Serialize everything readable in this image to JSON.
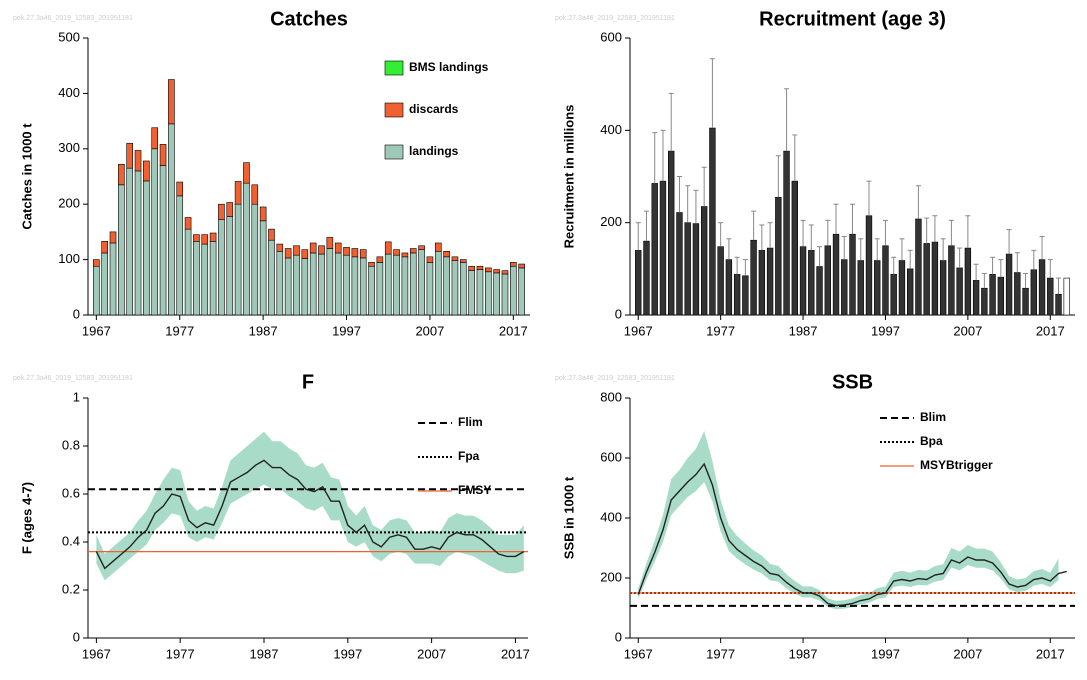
{
  "chart_data": [
    {
      "type": "stacked",
      "title": "Catches",
      "ylabel": "Catches in 1000 t",
      "watermark": "pok.27.3a46_2019_12583_201951181",
      "x": [
        1967,
        1968,
        1969,
        1970,
        1971,
        1972,
        1973,
        1974,
        1975,
        1976,
        1977,
        1978,
        1979,
        1980,
        1981,
        1982,
        1983,
        1984,
        1985,
        1986,
        1987,
        1988,
        1989,
        1990,
        1991,
        1992,
        1993,
        1994,
        1995,
        1996,
        1997,
        1998,
        1999,
        2000,
        2001,
        2002,
        2003,
        2004,
        2005,
        2006,
        2007,
        2008,
        2009,
        2010,
        2011,
        2012,
        2013,
        2014,
        2015,
        2016,
        2017,
        2018
      ],
      "series": [
        {
          "name": "landings",
          "color": "#a0c8b8",
          "values": [
            88,
            112,
            130,
            235,
            265,
            260,
            242,
            300,
            270,
            345,
            215,
            155,
            133,
            128,
            133,
            172,
            178,
            200,
            238,
            200,
            170,
            135,
            115,
            103,
            108,
            102,
            112,
            110,
            120,
            112,
            108,
            105,
            103,
            88,
            95,
            110,
            108,
            105,
            112,
            118,
            95,
            115,
            105,
            98,
            95,
            80,
            82,
            78,
            76,
            74,
            88,
            85
          ]
        },
        {
          "name": "discards",
          "color": "#f06030",
          "values": [
            12,
            21,
            20,
            37,
            45,
            37,
            36,
            38,
            38,
            80,
            25,
            21,
            12,
            17,
            15,
            28,
            25,
            41,
            37,
            35,
            25,
            20,
            13,
            17,
            17,
            16,
            18,
            15,
            20,
            18,
            14,
            15,
            15,
            7,
            10,
            22,
            10,
            7,
            8,
            7,
            10,
            15,
            10,
            7,
            5,
            8,
            6,
            7,
            6,
            6,
            7,
            7
          ]
        },
        {
          "name": "BMS landings",
          "color": "#33ee33",
          "values": [
            0,
            0,
            0,
            0,
            0,
            0,
            0,
            0,
            0,
            0,
            0,
            0,
            0,
            0,
            0,
            0,
            0,
            0,
            0,
            0,
            0,
            0,
            0,
            0,
            0,
            0,
            0,
            0,
            0,
            0,
            0,
            0,
            0,
            0,
            0,
            0,
            0,
            0,
            0,
            0,
            0,
            0,
            0,
            0,
            0,
            0,
            0,
            0,
            0,
            0,
            0,
            0
          ]
        }
      ],
      "xlim": [
        1966,
        2019
      ],
      "xticks": [
        1967,
        1977,
        1987,
        1997,
        2007,
        2017
      ],
      "ylim": [
        0,
        500
      ],
      "yticks": [
        0,
        100,
        200,
        300,
        400,
        500
      ]
    },
    {
      "type": "bar",
      "title": "Recruitment (age 3)",
      "ylabel": "Recruitment in millions",
      "watermark": "pok.27.3a46_2019_12583_201951181",
      "x": [
        1967,
        1968,
        1969,
        1970,
        1971,
        1972,
        1973,
        1974,
        1975,
        1976,
        1977,
        1978,
        1979,
        1980,
        1981,
        1982,
        1983,
        1984,
        1985,
        1986,
        1987,
        1988,
        1989,
        1990,
        1991,
        1992,
        1993,
        1994,
        1995,
        1996,
        1997,
        1998,
        1999,
        2000,
        2001,
        2002,
        2003,
        2004,
        2005,
        2006,
        2007,
        2008,
        2009,
        2010,
        2011,
        2012,
        2013,
        2014,
        2015,
        2016,
        2017,
        2018,
        2019
      ],
      "values": [
        140,
        160,
        285,
        290,
        355,
        222,
        200,
        198,
        235,
        405,
        148,
        120,
        88,
        85,
        162,
        140,
        145,
        255,
        355,
        290,
        148,
        140,
        105,
        150,
        175,
        120,
        175,
        118,
        215,
        118,
        150,
        88,
        118,
        100,
        208,
        155,
        158,
        118,
        150,
        102,
        145,
        75,
        58,
        88,
        82,
        132,
        92,
        58,
        98,
        120,
        80,
        45,
        80
      ],
      "upper": [
        200,
        225,
        395,
        400,
        480,
        300,
        280,
        270,
        320,
        555,
        200,
        165,
        125,
        120,
        225,
        195,
        200,
        345,
        490,
        390,
        205,
        195,
        148,
        205,
        240,
        170,
        240,
        165,
        290,
        165,
        205,
        125,
        165,
        140,
        280,
        210,
        215,
        165,
        205,
        145,
        215,
        110,
        90,
        125,
        120,
        185,
        135,
        90,
        140,
        170,
        120,
        80,
        null
      ],
      "color": "#333333",
      "final_color": "#ffffff",
      "xlim": [
        1966,
        2020
      ],
      "xticks": [
        1967,
        1977,
        1987,
        1997,
        2007,
        2017
      ],
      "ylim": [
        0,
        600
      ],
      "yticks": [
        0,
        200,
        400,
        600
      ]
    },
    {
      "type": "line",
      "title": "F",
      "ylabel": "F (ages 4-7)",
      "watermark": "pok.27.3a46_2019_12583_201951181",
      "x": [
        1967,
        1968,
        1969,
        1970,
        1971,
        1972,
        1973,
        1974,
        1975,
        1976,
        1977,
        1978,
        1979,
        1980,
        1981,
        1982,
        1983,
        1984,
        1985,
        1986,
        1987,
        1988,
        1989,
        1990,
        1991,
        1992,
        1993,
        1994,
        1995,
        1996,
        1997,
        1998,
        1999,
        2000,
        2001,
        2002,
        2003,
        2004,
        2005,
        2006,
        2007,
        2008,
        2009,
        2010,
        2011,
        2012,
        2013,
        2014,
        2015,
        2016,
        2017,
        2018
      ],
      "values": [
        0.36,
        0.29,
        0.32,
        0.35,
        0.38,
        0.42,
        0.45,
        0.52,
        0.55,
        0.6,
        0.59,
        0.49,
        0.46,
        0.48,
        0.47,
        0.55,
        0.65,
        0.67,
        0.69,
        0.72,
        0.74,
        0.71,
        0.71,
        0.68,
        0.66,
        0.62,
        0.61,
        0.63,
        0.57,
        0.57,
        0.47,
        0.44,
        0.47,
        0.4,
        0.38,
        0.42,
        0.43,
        0.42,
        0.37,
        0.37,
        0.38,
        0.37,
        0.42,
        0.44,
        0.43,
        0.43,
        0.41,
        0.38,
        0.35,
        0.34,
        0.34,
        0.36
      ],
      "low": [
        0.31,
        0.24,
        0.27,
        0.3,
        0.33,
        0.36,
        0.39,
        0.45,
        0.48,
        0.52,
        0.51,
        0.42,
        0.4,
        0.42,
        0.41,
        0.48,
        0.56,
        0.58,
        0.6,
        0.62,
        0.64,
        0.62,
        0.62,
        0.59,
        0.57,
        0.54,
        0.53,
        0.55,
        0.49,
        0.49,
        0.4,
        0.38,
        0.4,
        0.34,
        0.32,
        0.35,
        0.36,
        0.35,
        0.31,
        0.31,
        0.31,
        0.3,
        0.34,
        0.36,
        0.35,
        0.34,
        0.32,
        0.3,
        0.28,
        0.27,
        0.27,
        0.28
      ],
      "high": [
        0.43,
        0.35,
        0.38,
        0.41,
        0.44,
        0.49,
        0.53,
        0.6,
        0.66,
        0.71,
        0.7,
        0.57,
        0.53,
        0.55,
        0.54,
        0.63,
        0.74,
        0.77,
        0.8,
        0.83,
        0.86,
        0.82,
        0.82,
        0.79,
        0.77,
        0.72,
        0.71,
        0.73,
        0.67,
        0.66,
        0.55,
        0.51,
        0.55,
        0.47,
        0.45,
        0.49,
        0.5,
        0.49,
        0.44,
        0.44,
        0.45,
        0.44,
        0.5,
        0.52,
        0.51,
        0.51,
        0.49,
        0.46,
        0.43,
        0.43,
        0.43,
        0.47
      ],
      "color": "#222222",
      "band_color": "#a8dcc8",
      "references": [
        {
          "name": "Flim",
          "value": 0.62,
          "style": "dashed",
          "color": "#000000"
        },
        {
          "name": "Fpa",
          "value": 0.44,
          "style": "dotted",
          "color": "#000000"
        },
        {
          "name": "FMSY",
          "value": 0.36,
          "style": "solid",
          "color": "#f06030"
        }
      ],
      "xlim": [
        1966,
        2018.5
      ],
      "xticks": [
        1967,
        1977,
        1987,
        1997,
        2007,
        2017
      ],
      "ylim": [
        0,
        1
      ],
      "yticks": [
        0,
        0.2,
        0.4,
        0.6,
        0.8,
        1
      ]
    },
    {
      "type": "line",
      "title": "SSB",
      "ylabel": "SSB in 1000 t",
      "watermark": "pok.27.3a46_2019_12583_201951181",
      "x": [
        1967,
        1968,
        1969,
        1970,
        1971,
        1972,
        1973,
        1974,
        1975,
        1976,
        1977,
        1978,
        1979,
        1980,
        1981,
        1982,
        1983,
        1984,
        1985,
        1986,
        1987,
        1988,
        1989,
        1990,
        1991,
        1992,
        1993,
        1994,
        1995,
        1996,
        1997,
        1998,
        1999,
        2000,
        2001,
        2002,
        2003,
        2004,
        2005,
        2006,
        2007,
        2008,
        2009,
        2010,
        2011,
        2012,
        2013,
        2014,
        2015,
        2016,
        2017,
        2018,
        2019
      ],
      "values": [
        145,
        220,
        285,
        360,
        460,
        490,
        520,
        545,
        580,
        510,
        400,
        325,
        295,
        275,
        255,
        240,
        215,
        210,
        185,
        165,
        150,
        150,
        140,
        115,
        108,
        110,
        115,
        125,
        130,
        145,
        150,
        190,
        195,
        190,
        198,
        195,
        210,
        215,
        260,
        250,
        270,
        260,
        260,
        250,
        220,
        180,
        170,
        175,
        195,
        200,
        190,
        215,
        222
      ],
      "low": [
        130,
        195,
        255,
        320,
        410,
        440,
        470,
        490,
        520,
        455,
        355,
        290,
        265,
        245,
        228,
        215,
        192,
        188,
        165,
        148,
        135,
        135,
        125,
        103,
        96,
        98,
        103,
        112,
        117,
        130,
        135,
        170,
        175,
        170,
        177,
        175,
        188,
        193,
        235,
        225,
        243,
        234,
        234,
        225,
        198,
        162,
        153,
        157,
        175,
        180,
        170,
        193,
        null
      ],
      "high": [
        165,
        250,
        325,
        410,
        530,
        560,
        600,
        630,
        690,
        590,
        460,
        375,
        340,
        315,
        292,
        275,
        247,
        240,
        212,
        190,
        172,
        172,
        160,
        132,
        124,
        126,
        132,
        143,
        149,
        166,
        172,
        218,
        224,
        218,
        227,
        224,
        240,
        246,
        300,
        288,
        310,
        298,
        298,
        288,
        252,
        206,
        195,
        200,
        223,
        230,
        218,
        265,
        null
      ],
      "color": "#222222",
      "band_color": "#a8dcc8",
      "references": [
        {
          "name": "Blim",
          "value": 107,
          "style": "dashed",
          "color": "#000000"
        },
        {
          "name": "Bpa",
          "value": 150,
          "style": "dotted",
          "color": "#000000"
        },
        {
          "name": "MSYBtrigger",
          "value": 150,
          "style": "solid",
          "color": "#f06030"
        }
      ],
      "xlim": [
        1966,
        2020
      ],
      "xticks": [
        1967,
        1977,
        1987,
        1997,
        2007,
        2017
      ],
      "ylim": [
        0,
        800
      ],
      "yticks": [
        0,
        200,
        400,
        600,
        800
      ]
    }
  ]
}
